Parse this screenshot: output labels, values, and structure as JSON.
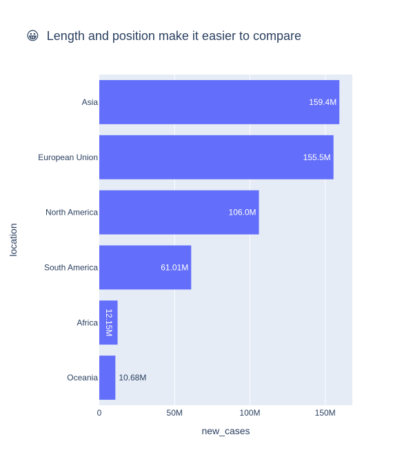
{
  "chart_data": {
    "type": "bar",
    "orientation": "horizontal",
    "title_icon": "😀",
    "title": "Length and position make it easier to compare",
    "xlabel": "new_cases",
    "ylabel": "location",
    "categories": [
      "Asia",
      "European Union",
      "North America",
      "South America",
      "Africa",
      "Oceania"
    ],
    "values": [
      159400000,
      155500000,
      106000000,
      61010000,
      12150000,
      10680000
    ],
    "value_labels": [
      "159.4M",
      "155.5M",
      "106.0M",
      "61.01M",
      "12.15M",
      "10.68M"
    ],
    "label_placement": [
      "inside",
      "inside",
      "inside",
      "inside",
      "inside-rotated",
      "outside"
    ],
    "xlim": [
      0,
      168000000
    ],
    "x_ticks": [
      0,
      50000000,
      100000000,
      150000000
    ],
    "x_tick_labels": [
      "0",
      "50M",
      "100M",
      "150M"
    ],
    "grid": true,
    "colors": {
      "bar": "#636efa",
      "plot_background": "#e5ecf6",
      "gridline": "#ffffff",
      "text": "#2a3f5f",
      "label_inside": "#ffffff",
      "label_outside": "#2a3f5f"
    }
  }
}
